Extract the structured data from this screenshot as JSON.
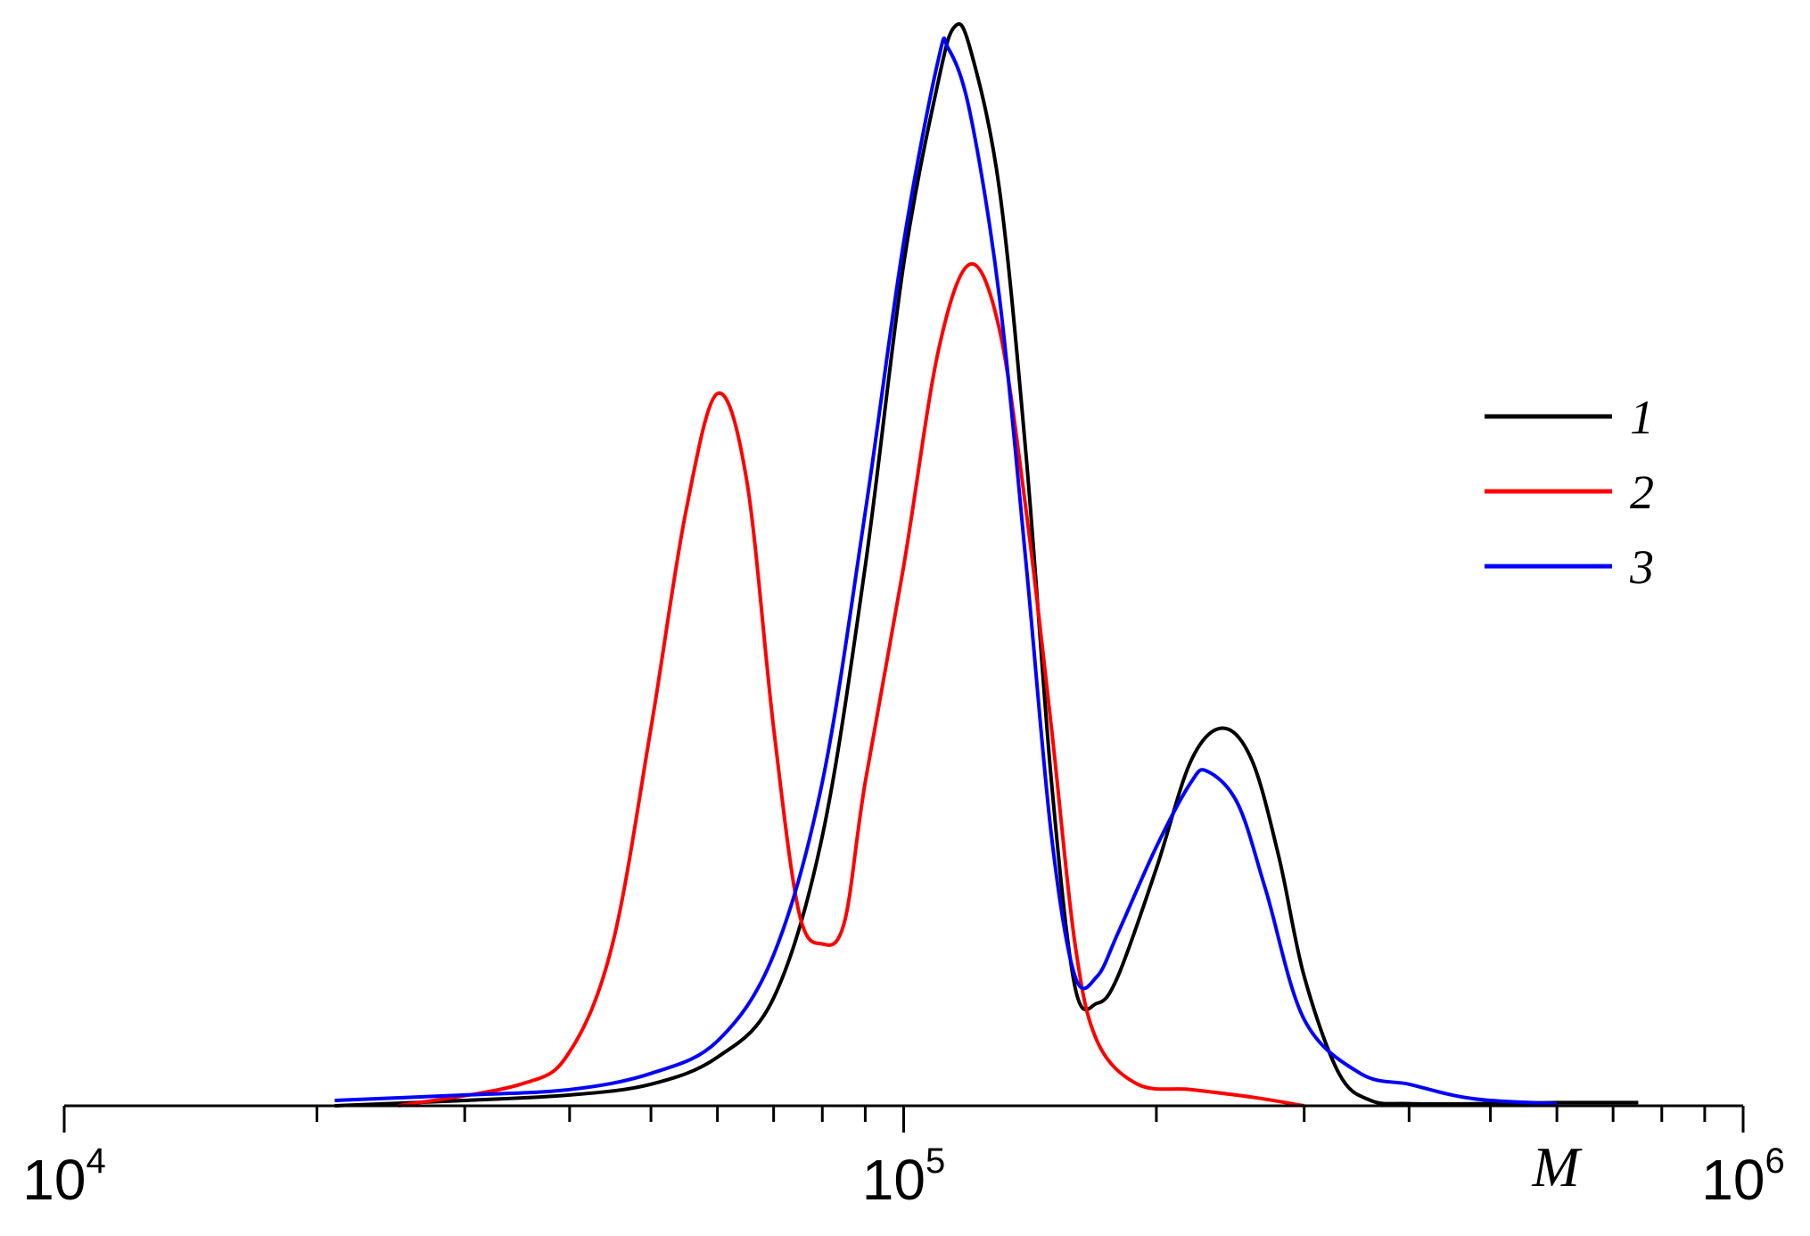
{
  "chart_data": {
    "type": "line",
    "xscale": "log",
    "xlim": [
      10000,
      1000000
    ],
    "ylim": [
      0,
      1.0
    ],
    "grid": false,
    "title": "",
    "xlabel": "M",
    "ylabel": "",
    "x_ticks": [
      {
        "value": 10000,
        "base": "10",
        "exp": "4"
      },
      {
        "value": 100000,
        "base": "10",
        "exp": "5"
      },
      {
        "value": 1000000,
        "base": "10",
        "exp": "6"
      }
    ],
    "legend": {
      "position": "top-right",
      "entries": [
        "1",
        "2",
        "3"
      ]
    },
    "series": [
      {
        "name": "1",
        "color": "#000000",
        "points": [
          [
            21000,
            0.0
          ],
          [
            30000,
            0.005
          ],
          [
            40000,
            0.01
          ],
          [
            50000,
            0.02
          ],
          [
            60000,
            0.045
          ],
          [
            70000,
            0.1
          ],
          [
            80000,
            0.25
          ],
          [
            90000,
            0.5
          ],
          [
            100000,
            0.78
          ],
          [
            110000,
            0.95
          ],
          [
            115000,
            1.0
          ],
          [
            120000,
            0.98
          ],
          [
            130000,
            0.85
          ],
          [
            140000,
            0.6
          ],
          [
            150000,
            0.3
          ],
          [
            160000,
            0.11
          ],
          [
            170000,
            0.095
          ],
          [
            180000,
            0.12
          ],
          [
            200000,
            0.22
          ],
          [
            220000,
            0.32
          ],
          [
            240000,
            0.35
          ],
          [
            260000,
            0.32
          ],
          [
            280000,
            0.23
          ],
          [
            300000,
            0.12
          ],
          [
            330000,
            0.03
          ],
          [
            360000,
            0.005
          ],
          [
            400000,
            0.002
          ],
          [
            500000,
            0.002
          ],
          [
            600000,
            0.003
          ],
          [
            750000,
            0.003
          ]
        ]
      },
      {
        "name": "2",
        "color": "#ff0000",
        "points": [
          [
            25000,
            0.0
          ],
          [
            35000,
            0.02
          ],
          [
            40000,
            0.05
          ],
          [
            45000,
            0.15
          ],
          [
            50000,
            0.35
          ],
          [
            55000,
            0.55
          ],
          [
            60000,
            0.66
          ],
          [
            65000,
            0.58
          ],
          [
            70000,
            0.35
          ],
          [
            75000,
            0.18
          ],
          [
            80000,
            0.15
          ],
          [
            85000,
            0.17
          ],
          [
            90000,
            0.3
          ],
          [
            100000,
            0.5
          ],
          [
            110000,
            0.7
          ],
          [
            120000,
            0.78
          ],
          [
            130000,
            0.72
          ],
          [
            140000,
            0.55
          ],
          [
            150000,
            0.35
          ],
          [
            160000,
            0.15
          ],
          [
            170000,
            0.06
          ],
          [
            190000,
            0.02
          ],
          [
            220000,
            0.015
          ],
          [
            260000,
            0.008
          ],
          [
            300000,
            0.0
          ]
        ]
      },
      {
        "name": "3",
        "color": "#0000ff",
        "points": [
          [
            21000,
            0.005
          ],
          [
            30000,
            0.01
          ],
          [
            40000,
            0.015
          ],
          [
            50000,
            0.03
          ],
          [
            60000,
            0.06
          ],
          [
            70000,
            0.14
          ],
          [
            80000,
            0.3
          ],
          [
            90000,
            0.55
          ],
          [
            100000,
            0.8
          ],
          [
            110000,
            0.97
          ],
          [
            113000,
            0.98
          ],
          [
            120000,
            0.92
          ],
          [
            130000,
            0.75
          ],
          [
            140000,
            0.5
          ],
          [
            150000,
            0.25
          ],
          [
            160000,
            0.12
          ],
          [
            170000,
            0.12
          ],
          [
            180000,
            0.16
          ],
          [
            200000,
            0.24
          ],
          [
            220000,
            0.3
          ],
          [
            230000,
            0.31
          ],
          [
            250000,
            0.28
          ],
          [
            270000,
            0.2
          ],
          [
            300000,
            0.08
          ],
          [
            350000,
            0.03
          ],
          [
            400000,
            0.02
          ],
          [
            450000,
            0.01
          ],
          [
            500000,
            0.005
          ],
          [
            600000,
            0.002
          ]
        ]
      }
    ]
  }
}
